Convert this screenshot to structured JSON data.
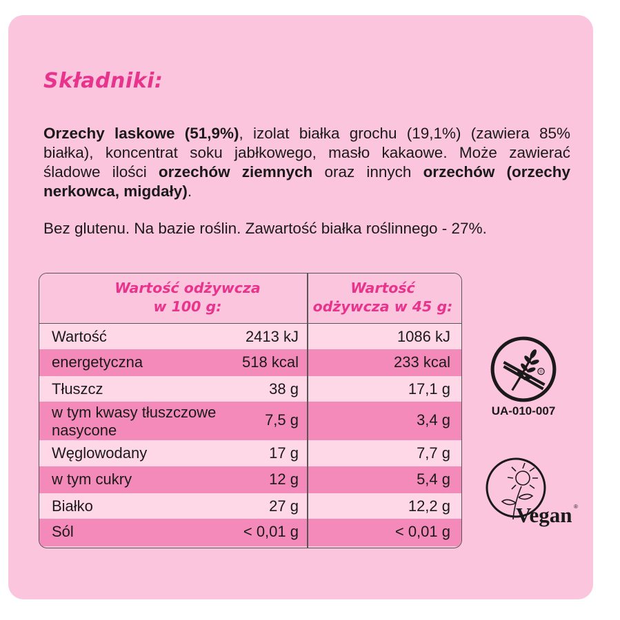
{
  "heading": "Składniki:",
  "ingredients": {
    "p1_bold": "Orzechy laskowe (51,9%)",
    "p1_text": ", izolat białka grochu (19,1%) (zawiera 85% białka), koncentrat soku jabłkowego, masło kakaowe. Może zawierać śladowe ilości ",
    "p2_bold": "orzechów ziemnych",
    "p2_text": " oraz innych ",
    "p3_bold": "orzechów (orzechy nerkowca, migdały)",
    "p3_text": "."
  },
  "note": "Bez glutenu. Na bazie roślin. Zawartość białka roślinnego - 27%.",
  "table": {
    "header_100_line1": "Wartość odżywcza",
    "header_100_line2": "w 100 g:",
    "header_45_line1": "Wartość",
    "header_45_line2": "odżywcza w 45 g:",
    "rows": [
      {
        "label": "Wartość",
        "per100": "2413 kJ",
        "per45": "1086 kJ"
      },
      {
        "label": "energetyczna",
        "per100": "518 kcal",
        "per45": "233 kcal"
      },
      {
        "label": "Tłuszcz",
        "per100": "38 g",
        "per45": "17,1 g"
      },
      {
        "label_line1": "w tym kwasy tłuszczowe",
        "label_line2": "nasycone",
        "per100": "7,5 g",
        "per45": "3,4 g"
      },
      {
        "label": "Węglowodany",
        "per100": "17 g",
        "per45": "7,7 g"
      },
      {
        "label": "w tym cukry",
        "per100": "12 g",
        "per45": "5,4 g"
      },
      {
        "label": "Białko",
        "per100": "27 g",
        "per45": "12,2 g"
      },
      {
        "label": "Sól",
        "per100": "< 0,01 g",
        "per45": "< 0,01 g"
      }
    ]
  },
  "badges": {
    "gluten_free_icon": "crossed-grain-icon",
    "gluten_free_code": "UA-010-007",
    "vegan_icon": "vegan-sunflower-icon",
    "vegan_word": "Vegan",
    "registered_mark": "®"
  },
  "colors": {
    "card_bg": "#fcc5de",
    "accent": "#e8348c",
    "row_light": "#ffd8e8",
    "row_dark": "#f48ab9"
  }
}
